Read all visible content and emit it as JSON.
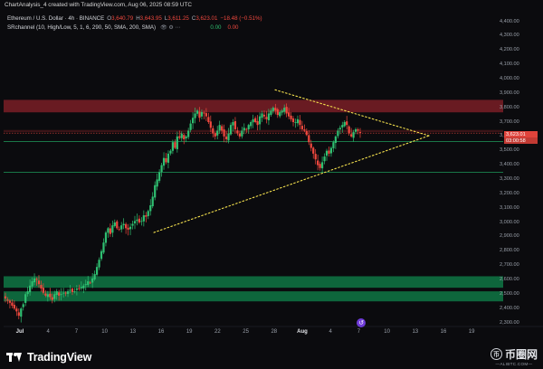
{
  "header": {
    "title_line": "ChartAnalysis_4 created with TradingView.com, Aug 06, 2025 08:59 UTC"
  },
  "legend": {
    "symbol": "Ethereum / U.S. Dollar · 4h · BINANCE",
    "ohlc": [
      {
        "k": "O",
        "v": "3,640.79"
      },
      {
        "k": "H",
        "v": "3,643.95"
      },
      {
        "k": "L",
        "v": "3,611.25"
      },
      {
        "k": "C",
        "v": "3,623.01"
      }
    ],
    "change": "−18.48 (−0.51%)",
    "indicator_name": "SRchannel (10, High/Low, 5, 1, 6, 290, 50, SMA, 200, SMA)",
    "indicator_icons": "👁 ⚙ ⋯",
    "indicator_values": [
      "0.00",
      "0.00"
    ]
  },
  "price_axis": {
    "ticks": [
      "4,400.00",
      "4,300.00",
      "4,200.00",
      "4,100.00",
      "4,000.00",
      "3,900.00",
      "3,800.00",
      "3,700.00",
      "3,600.00",
      "3,500.00",
      "3,400.00",
      "3,300.00",
      "3,200.00",
      "3,100.00",
      "3,000.00",
      "2,900.00",
      "2,800.00",
      "2,700.00",
      "2,600.00",
      "2,500.00",
      "2,400.00",
      "2,300.00"
    ],
    "last_price": "3,623.01",
    "countdown": "03:00:58"
  },
  "time_axis": {
    "ticks": [
      {
        "label": "Jul",
        "bold": true
      },
      {
        "label": "4",
        "bold": false
      },
      {
        "label": "7",
        "bold": false
      },
      {
        "label": "10",
        "bold": false
      },
      {
        "label": "13",
        "bold": false
      },
      {
        "label": "16",
        "bold": false
      },
      {
        "label": "19",
        "bold": false
      },
      {
        "label": "22",
        "bold": false
      },
      {
        "label": "25",
        "bold": false
      },
      {
        "label": "28",
        "bold": false
      },
      {
        "label": "Aug",
        "bold": true
      },
      {
        "label": "4",
        "bold": false
      },
      {
        "label": "7",
        "bold": false
      },
      {
        "label": "10",
        "bold": false
      },
      {
        "label": "13",
        "bold": false
      },
      {
        "label": "16",
        "bold": false
      },
      {
        "label": "19",
        "bold": false
      }
    ]
  },
  "chart_data": {
    "type": "candlestick",
    "symbol": "ETHUSD",
    "timeframe": "4h",
    "ylim": [
      2250,
      4450
    ],
    "closes": [
      2470,
      2455,
      2440,
      2420,
      2400,
      2380,
      2350,
      2400,
      2430,
      2500,
      2520,
      2560,
      2590,
      2610,
      2600,
      2570,
      2540,
      2510,
      2490,
      2500,
      2480,
      2460,
      2500,
      2520,
      2490,
      2500,
      2510,
      2505,
      2520,
      2530,
      2515,
      2520,
      2540,
      2535,
      2550,
      2560,
      2570,
      2590,
      2580,
      2610,
      2640,
      2690,
      2740,
      2800,
      2860,
      2930,
      2960,
      2920,
      2980,
      3000,
      2960,
      2950,
      2980,
      2990,
      2960,
      2950,
      2970,
      2990,
      3010,
      3020,
      3000,
      3010,
      3050,
      3040,
      3080,
      3120,
      3180,
      3260,
      3300,
      3350,
      3400,
      3450,
      3420,
      3480,
      3500,
      3560,
      3520,
      3600,
      3590,
      3620,
      3580,
      3600,
      3640,
      3690,
      3730,
      3760,
      3780,
      3730,
      3770,
      3760,
      3740,
      3700,
      3660,
      3620,
      3600,
      3640,
      3680,
      3640,
      3600,
      3580,
      3620,
      3680,
      3700,
      3650,
      3620,
      3600,
      3640,
      3660,
      3650,
      3680,
      3700,
      3720,
      3700,
      3680,
      3740,
      3760,
      3740,
      3720,
      3760,
      3780,
      3800,
      3780,
      3750,
      3770,
      3780,
      3800,
      3760,
      3740,
      3720,
      3700,
      3700,
      3720,
      3680,
      3650,
      3640,
      3610,
      3560,
      3520,
      3480,
      3440,
      3400,
      3380,
      3420,
      3460,
      3500,
      3480,
      3520,
      3560,
      3600,
      3640,
      3660,
      3680,
      3700,
      3680,
      3620,
      3600,
      3630,
      3650,
      3640,
      3623
    ],
    "resistance_zone": [
      3768,
      3855
    ],
    "level_band": [
      3630,
      3645
    ],
    "support_lines": [
      3565,
      3350
    ],
    "support_zones": [
      [
        2545,
        2625
      ],
      [
        2450,
        2520
      ]
    ],
    "triangle": {
      "apex": 3605,
      "upper_start": 3925,
      "lower_start": 2930
    }
  },
  "branding": {
    "logo_text": "TradingView",
    "watermark_text": "币圈网",
    "watermark_url": "—ALIBTC.COM—"
  },
  "colors": {
    "up": "#2fbf71",
    "down": "#f0483e",
    "resistance_fill": "#7a1f26",
    "support_fill": "#0f6b3f",
    "triangle": "#f4e04d"
  }
}
